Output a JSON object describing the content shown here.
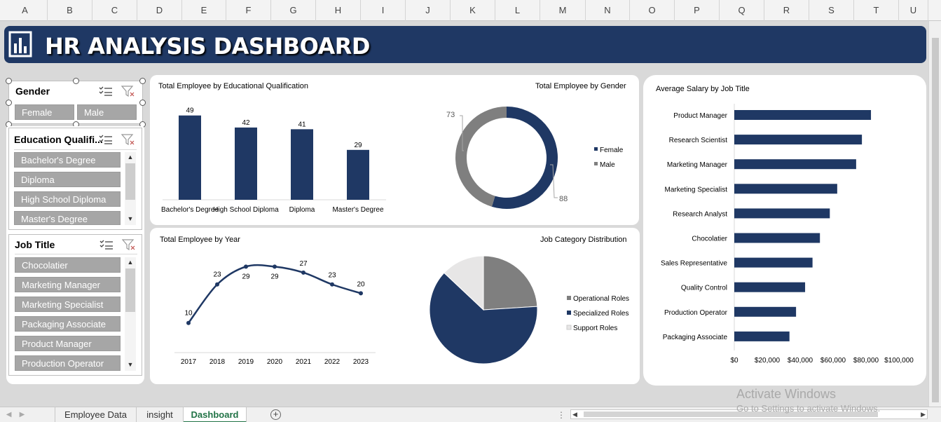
{
  "columns": [
    "A",
    "B",
    "C",
    "D",
    "E",
    "F",
    "G",
    "H",
    "I",
    "J",
    "K",
    "L",
    "M",
    "N",
    "O",
    "P",
    "Q",
    "R",
    "S",
    "T",
    "U"
  ],
  "dashboard_title": "HR ANALYSIS DASHBOARD",
  "slicers": {
    "gender": {
      "title": "Gender",
      "items": [
        "Female",
        "Male"
      ]
    },
    "education": {
      "title": "Education Qualifi...",
      "items": [
        "Bachelor's Degree",
        "Diploma",
        "High School Diploma",
        "Master's Degree"
      ]
    },
    "job_title": {
      "title": "Job Title",
      "items": [
        "Chocolatier",
        "Marketing Manager",
        "Marketing Specialist",
        "Packaging Associate",
        "Product Manager",
        "Production Operator"
      ]
    }
  },
  "chart_titles": {
    "education": "Total Employee by Educational Qualification",
    "gender": "Total Employee by Gender",
    "salary": "Average Salary by Job Title",
    "year": "Total Employee by Year",
    "job_category": "Job Category Distribution"
  },
  "chart_data": [
    {
      "type": "bar",
      "title": "Total Employee by Educational Qualification",
      "categories": [
        "Bachelor's Degree",
        "High School Diploma",
        "Diploma",
        "Master's Degree"
      ],
      "values": [
        49,
        42,
        41,
        29
      ],
      "ylim": [
        0,
        55
      ],
      "color": "#1f3864"
    },
    {
      "type": "pie",
      "title": "Total Employee by Gender",
      "labels": [
        "Female",
        "Male"
      ],
      "values": [
        88,
        73
      ],
      "colors": [
        "#1f3864",
        "#7f7f7f"
      ],
      "legend": "right"
    },
    {
      "type": "bar",
      "title": "Average Salary by Job Title",
      "categories": [
        "Product Manager",
        "Research Scientist",
        "Marketing Manager",
        "Marketing Specialist",
        "Research Analyst",
        "Chocolatier",
        "Sales Representative",
        "Quality Control",
        "Production Operator",
        "Packaging Associate"
      ],
      "values": [
        83000,
        77500,
        74000,
        62500,
        58000,
        52000,
        47500,
        43000,
        37500,
        33500
      ],
      "xlim": [
        0,
        100000
      ],
      "tick_labels": [
        "$0",
        "$20,000",
        "$40,000",
        "$60,000",
        "$80,000",
        "$100,000"
      ],
      "color": "#1f3864"
    },
    {
      "type": "line",
      "title": "Total Employee by Year",
      "x": [
        "2017",
        "2018",
        "2019",
        "2020",
        "2021",
        "2022",
        "2023"
      ],
      "values": [
        10,
        23,
        29,
        29,
        27,
        23,
        20
      ],
      "ylim": [
        0,
        35
      ],
      "color": "#1f3864"
    },
    {
      "type": "pie",
      "title": "Job Category Distribution",
      "labels": [
        "Operational Roles",
        "Specialized Roles",
        "Support Roles"
      ],
      "values": [
        24,
        63,
        13
      ],
      "colors": [
        "#7f7f7f",
        "#1f3864",
        "#e7e6e6"
      ],
      "legend": "right"
    }
  ],
  "sheet_tabs": [
    "Employee Data",
    "insight",
    "Dashboard"
  ],
  "active_tab": "Dashboard",
  "watermark": {
    "line1": "Activate Windows",
    "line2": "Go to Settings to activate Windows."
  }
}
